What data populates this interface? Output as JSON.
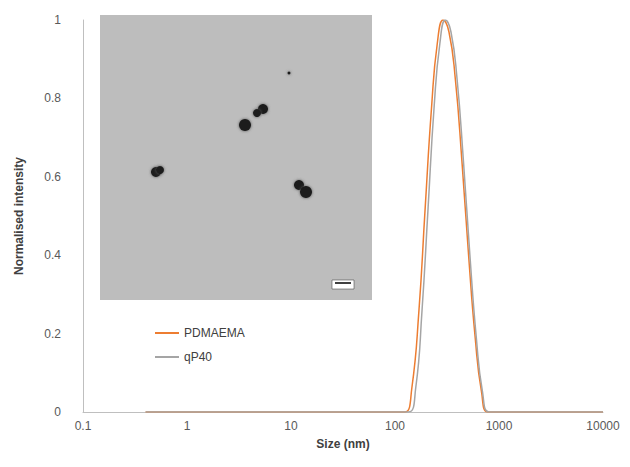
{
  "chart_data": {
    "type": "line",
    "x_label": "Size (nm)",
    "y_label": "Normalised intensity",
    "log": "x",
    "grid": false,
    "legend": "left",
    "xlim": [
      0.1,
      10000
    ],
    "xticks": [
      0.1,
      1,
      10,
      100,
      1000,
      10000
    ],
    "ylim": [
      0,
      1
    ],
    "yticks": [
      0,
      0.2,
      0.4,
      0.6,
      0.8,
      1
    ],
    "series": [
      {
        "name": "PDMAEMA",
        "color": "#ed7d31",
        "x": [
          0.4,
          10,
          100,
          125,
          145,
          170,
          195,
          225,
          255,
          290,
          330,
          380,
          440,
          510,
          590,
          680,
          780,
          1000,
          10000
        ],
        "values": [
          0,
          0,
          0,
          0,
          0.06,
          0.26,
          0.52,
          0.78,
          0.94,
          1,
          0.97,
          0.85,
          0.64,
          0.4,
          0.19,
          0.05,
          0,
          0,
          0
        ]
      },
      {
        "name": "qP40",
        "color": "#a5a5a5",
        "x": [
          0.4,
          10,
          100,
          135,
          158,
          182,
          208,
          238,
          270,
          305,
          345,
          395,
          455,
          525,
          605,
          695,
          800,
          1000,
          10000
        ],
        "values": [
          0,
          0,
          0,
          0,
          0.06,
          0.26,
          0.52,
          0.78,
          0.94,
          1,
          0.97,
          0.85,
          0.64,
          0.4,
          0.19,
          0.05,
          0,
          0,
          0
        ]
      }
    ]
  }
}
